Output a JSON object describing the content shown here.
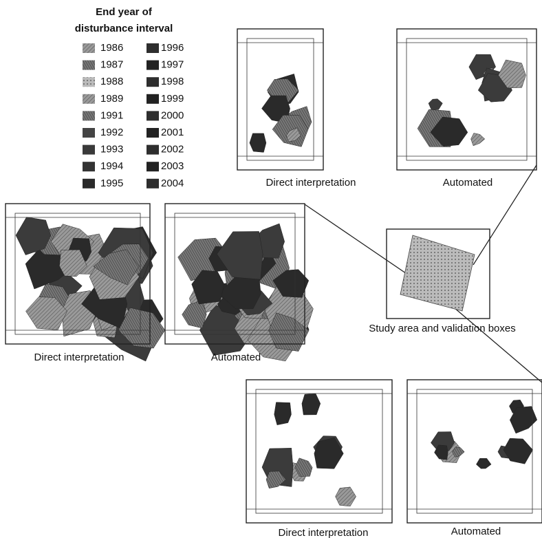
{
  "legend": {
    "title_lines": [
      "End year of",
      "disturbance interval"
    ],
    "years": [
      "1986",
      "1987",
      "1988",
      "1989",
      "1991",
      "1992",
      "1993",
      "1994",
      "1995",
      "1996",
      "1997",
      "1998",
      "1999",
      "2000",
      "2001",
      "2002",
      "2003",
      "2004"
    ]
  },
  "panels": [
    {
      "label": "Direct interpretation"
    },
    {
      "label": "Automated"
    },
    {
      "label": "Direct interpretation"
    },
    {
      "label": "Automated"
    },
    {
      "label": "Direct interpretation"
    },
    {
      "label": "Automated"
    }
  ],
  "study_area": {
    "label": "Study area and validation boxes"
  }
}
